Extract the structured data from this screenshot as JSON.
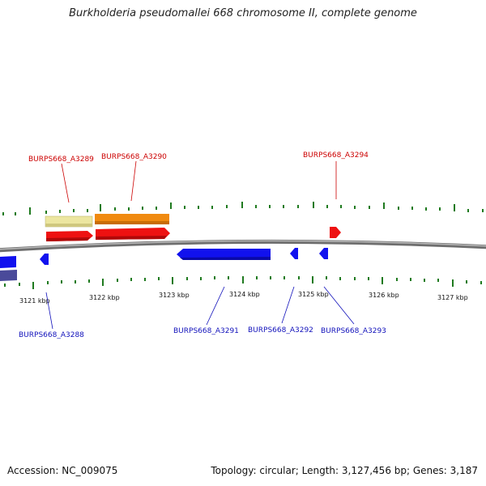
{
  "title": "Burkholderia pseudomallei 668 chromosome II, complete genome",
  "footer": {
    "accession": "Accession: NC_009075",
    "stats": "Topology: circular; Length: 3,127,456 bp; Genes: 3,187"
  },
  "colors": {
    "backbone": "#8a8a8a",
    "tick": "#1f7a1f",
    "forward_gene": "#ee1111",
    "forward_label": "#cc0000",
    "reverse_gene": "#1111ee",
    "reverse_label": "#1111bb",
    "cds_orange": "#f08a10",
    "cds_pale": "#ece6a0",
    "reverse_dark": "#4a4a9a"
  },
  "kbp_labels": [
    "3121 kbp",
    "3122 kbp",
    "3123 kbp",
    "3124 kbp",
    "3125 kbp",
    "3126 kbp",
    "3127 kbp"
  ],
  "gene_labels": {
    "forward": [
      "BURPS668_A3289",
      "BURPS668_A3290",
      "BURPS668_A3294"
    ],
    "reverse": [
      "BURPS668_A3288",
      "BURPS668_A3291",
      "BURPS668_A3292",
      "BURPS668_A3293"
    ]
  }
}
